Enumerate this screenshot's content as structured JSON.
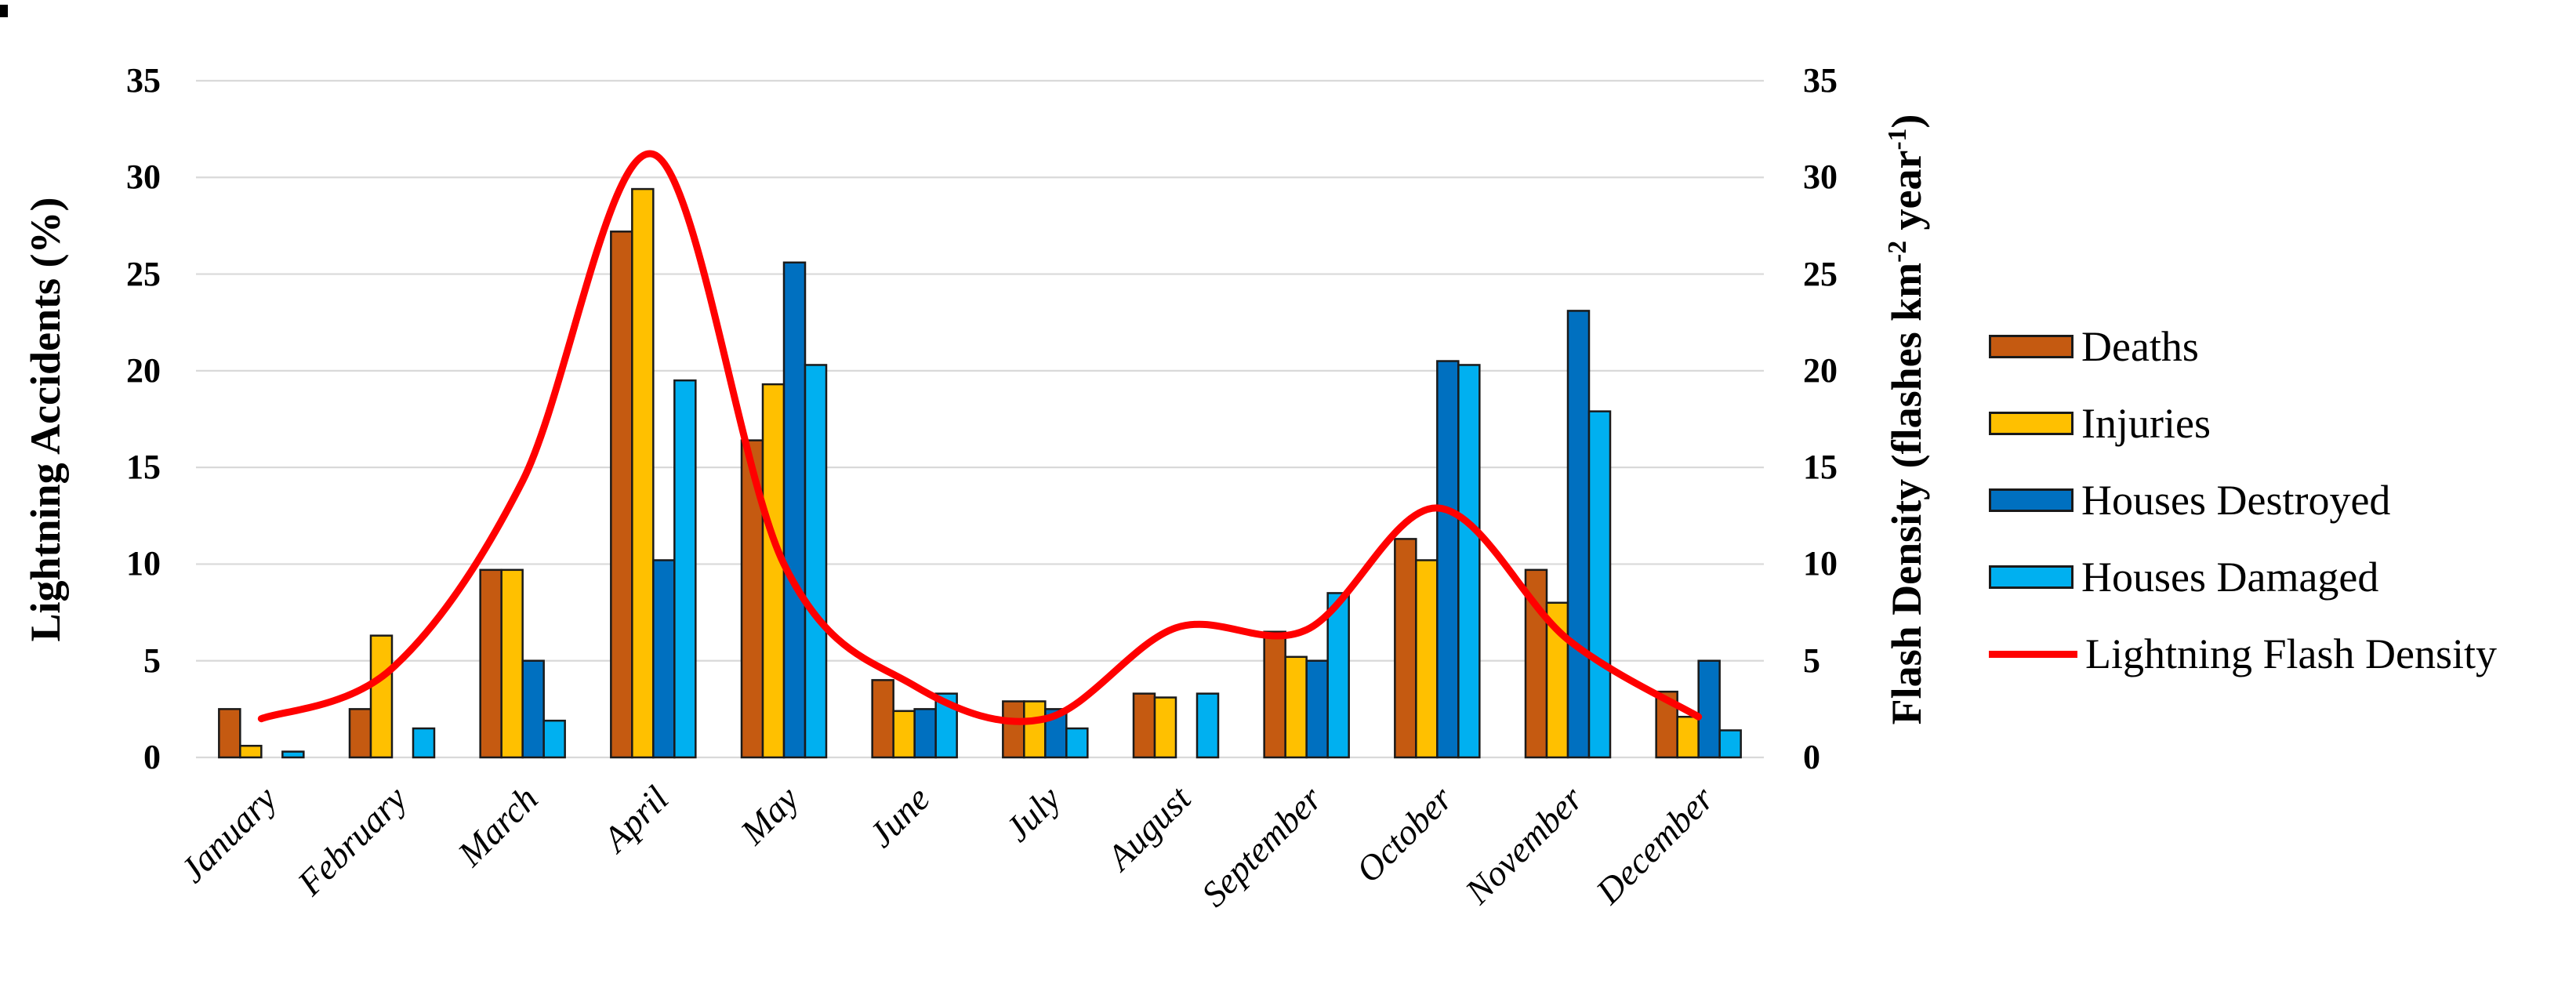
{
  "figure": {
    "left_axis": {
      "title": "Lightning Accidents (%)",
      "ticks": [
        "35",
        "30",
        "25",
        "20",
        "15",
        "10",
        "5",
        "0"
      ]
    },
    "right_axis": {
      "title_part1": "Flash Density (flashes km",
      "sup1": "-2",
      "title_part2": " year",
      "sup2": "-1",
      "title_part3": ")",
      "ticks": [
        "35",
        "30",
        "25",
        "20",
        "15",
        "10",
        "5",
        "0"
      ]
    }
  },
  "styles": {
    "background": "#FFFFFF",
    "grid_color": "#D9D9D9",
    "bar_outline_color": "#1A1A1A",
    "text_color": "#000000",
    "line_color": "#FF0000"
  },
  "chart_data": {
    "type": "bar+line",
    "title": "",
    "xlabel": "",
    "ylabel_left": "Lightning Accidents (%)",
    "ylabel_right": "Flash Density (flashes km-2 year-1)",
    "ylim": [
      0,
      35
    ],
    "ytick_step": 5,
    "grid": true,
    "legend_position": "right",
    "categories": [
      "January",
      "February",
      "March",
      "April",
      "May",
      "June",
      "July",
      "August",
      "September",
      "October",
      "November",
      "December"
    ],
    "series": [
      {
        "name": "Deaths",
        "type": "bar",
        "color": "#C55A11",
        "values": [
          2.5,
          2.5,
          9.7,
          27.2,
          16.4,
          4.0,
          2.9,
          3.3,
          6.5,
          11.3,
          9.7,
          3.4
        ]
      },
      {
        "name": "Injuries",
        "type": "bar",
        "color": "#FFC000",
        "values": [
          0.6,
          6.3,
          9.7,
          29.4,
          19.3,
          2.4,
          2.9,
          3.1,
          5.2,
          10.2,
          8.0,
          2.1
        ]
      },
      {
        "name": "Houses Destroyed",
        "type": "bar",
        "color": "#0070C0",
        "values": [
          0,
          0,
          5.0,
          10.2,
          25.6,
          2.5,
          2.5,
          0,
          5.0,
          20.5,
          23.1,
          5.0
        ]
      },
      {
        "name": "Houses Damaged",
        "type": "bar",
        "color": "#00B0F0",
        "values": [
          0.3,
          1.5,
          1.9,
          19.5,
          20.3,
          3.3,
          1.5,
          3.3,
          8.5,
          20.3,
          17.9,
          1.4
        ]
      },
      {
        "name": "Lightning Flash Density",
        "type": "line",
        "color": "#FF0000",
        "values": [
          2.0,
          4.6,
          14.3,
          31.2,
          10.0,
          3.7,
          2.0,
          6.7,
          6.6,
          12.9,
          6.1,
          2.1
        ]
      }
    ]
  }
}
